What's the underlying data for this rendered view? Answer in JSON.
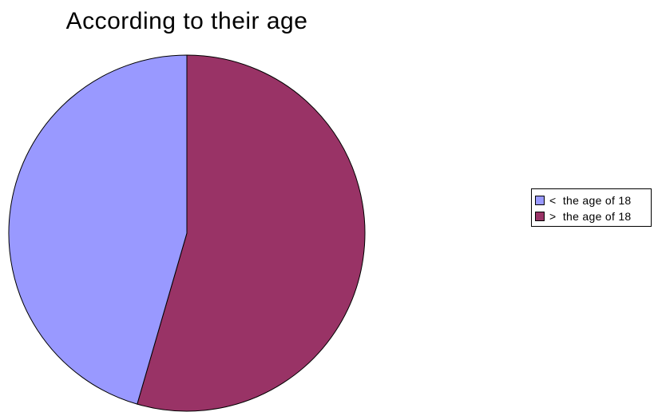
{
  "chart_data": {
    "type": "pie",
    "title": "According to their age",
    "categories": [
      "<  the age of 18",
      ">  the age of 18"
    ],
    "values": [
      45.5,
      54.5
    ],
    "colors": [
      "#9999ff",
      "#993366"
    ],
    "legend_position": "right"
  }
}
